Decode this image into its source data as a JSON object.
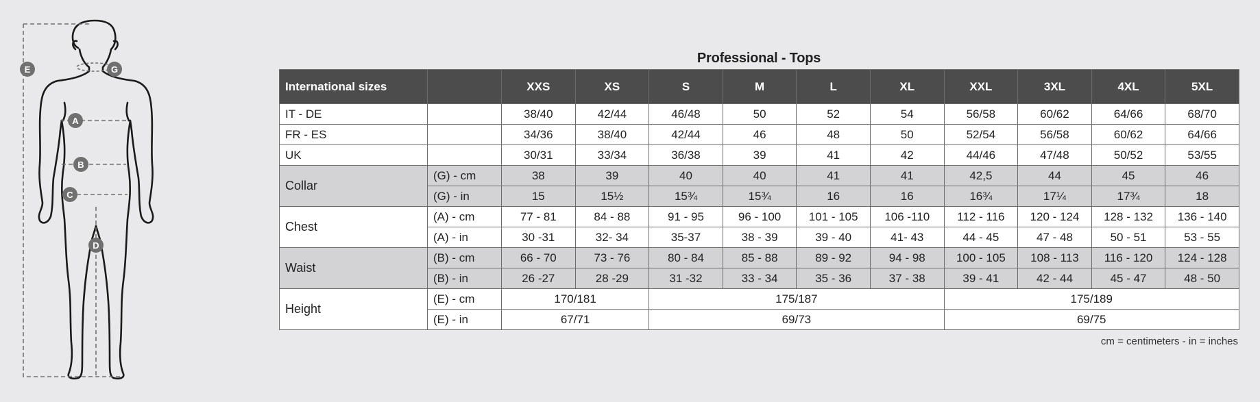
{
  "figure": {
    "markers": {
      "A": "A",
      "B": "B",
      "C": "C",
      "D": "D",
      "E": "E",
      "G": "G"
    },
    "marker_color": "#707070"
  },
  "title": "Professional - Tops",
  "header": {
    "first": "International sizes",
    "sizes": [
      "XXS",
      "XS",
      "S",
      "M",
      "L",
      "XL",
      "XXL",
      "3XL",
      "4XL",
      "5XL"
    ]
  },
  "rows": {
    "itde": {
      "label": "IT - DE",
      "values": [
        "38/40",
        "42/44",
        "46/48",
        "50",
        "52",
        "54",
        "56/58",
        "60/62",
        "64/66",
        "68/70"
      ]
    },
    "fres": {
      "label": "FR - ES",
      "values": [
        "34/36",
        "38/40",
        "42/44",
        "46",
        "48",
        "50",
        "52/54",
        "56/58",
        "60/62",
        "64/66"
      ]
    },
    "uk": {
      "label": "UK",
      "values": [
        "30/31",
        "33/34",
        "36/38",
        "39",
        "41",
        "42",
        "44/46",
        "47/48",
        "50/52",
        "53/55"
      ]
    },
    "collar": {
      "label": "Collar",
      "cm": {
        "unit": "(G) - cm",
        "values": [
          "38",
          "39",
          "40",
          "40",
          "41",
          "41",
          "42,5",
          "44",
          "45",
          "46"
        ]
      },
      "in": {
        "unit": "(G)  - in",
        "values": [
          "15",
          "15½",
          "15¾",
          "15¾",
          "16",
          "16",
          "16¾",
          "17¼",
          "17¾",
          "18"
        ]
      }
    },
    "chest": {
      "label": "Chest",
      "cm": {
        "unit": "(A) - cm",
        "values": [
          "77 - 81",
          "84 - 88",
          "91 - 95",
          "96 - 100",
          "101 - 105",
          "106 -110",
          "112 - 116",
          "120 - 124",
          "128 - 132",
          "136 - 140"
        ]
      },
      "in": {
        "unit": "(A) - in",
        "values": [
          "30 -31",
          "32- 34",
          "35-37",
          "38 - 39",
          "39 - 40",
          "41- 43",
          "44 - 45",
          "47 - 48",
          "50 - 51",
          "53 - 55"
        ]
      }
    },
    "waist": {
      "label": "Waist",
      "cm": {
        "unit": "(B) - cm",
        "values": [
          "66 - 70",
          "73 - 76",
          "80 - 84",
          "85 - 88",
          "89 - 92",
          "94 - 98",
          "100 - 105",
          "108 - 113",
          "116 - 120",
          "124 - 128"
        ]
      },
      "in": {
        "unit": "(B) - in",
        "values": [
          "26 -27",
          "28 -29",
          "31 -32",
          "33 - 34",
          "35 - 36",
          "37 - 38",
          "39 - 41",
          "42 - 44",
          "45 - 47",
          "48 - 50"
        ]
      }
    },
    "height": {
      "label": "Height",
      "cm": {
        "unit": "(E) - cm",
        "values": [
          "170/181",
          "175/187",
          "175/189"
        ]
      },
      "in": {
        "unit": "(E) - in",
        "values": [
          "67/71",
          "69/73",
          "69/75"
        ]
      }
    }
  },
  "note": "cm = centimeters - in = inches"
}
